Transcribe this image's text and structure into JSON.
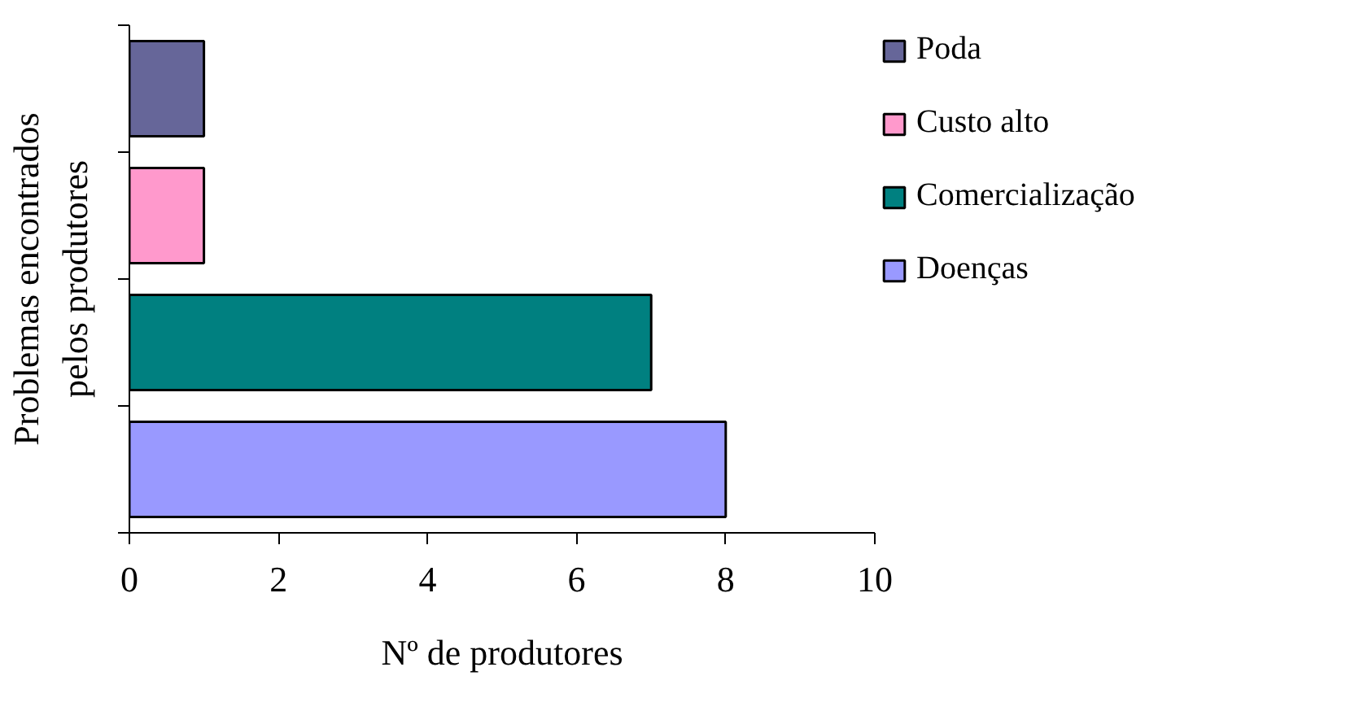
{
  "chart_data": {
    "type": "bar",
    "orientation": "horizontal",
    "categories": [
      null,
      null,
      null,
      null
    ],
    "series": [
      {
        "name": "Poda",
        "color": "#666699",
        "values": [
          1,
          null,
          null,
          null
        ]
      },
      {
        "name": "Custo alto",
        "color": "#ff99cc",
        "values": [
          null,
          1,
          null,
          null
        ]
      },
      {
        "name": "Comercialização",
        "color": "#008080",
        "values": [
          null,
          null,
          7,
          null
        ]
      },
      {
        "name": "Doenças",
        "color": "#9999ff",
        "values": [
          null,
          null,
          null,
          8
        ]
      }
    ],
    "xlabel": "Nº de produtores",
    "ylabel": "Problemas encontrados\npelos produtores",
    "xlim": [
      0,
      10
    ],
    "xticks": [
      0,
      2,
      4,
      6,
      8,
      10
    ],
    "tick_labels": "x",
    "grid": false,
    "legend": "right"
  }
}
